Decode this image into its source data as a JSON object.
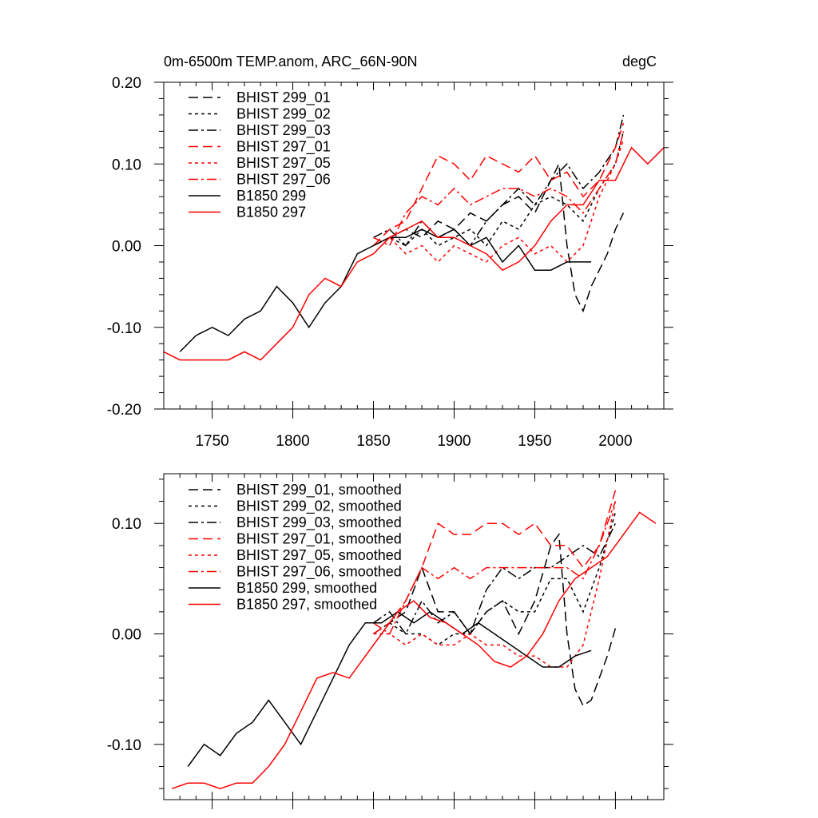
{
  "chart_data": [
    {
      "type": "line",
      "title": "0m-6500m TEMP.anom, ARC_66N-90N",
      "units": "degC",
      "xlabel": "",
      "ylabel": "",
      "xlim": [
        1720,
        2030
      ],
      "ylim": [
        -0.2,
        0.2
      ],
      "xticks": [
        1750,
        1800,
        1850,
        1900,
        1950,
        2000
      ],
      "xtick_labels": [
        "1750",
        "1800",
        "1850",
        "1900",
        "1950",
        "2000"
      ],
      "yticks": [
        -0.2,
        -0.1,
        0.0,
        0.1,
        0.2
      ],
      "ytick_labels": [
        "-0.20",
        "-0.10",
        "0.00",
        "0.10",
        "0.20"
      ],
      "legend_position": "top-left",
      "series": [
        {
          "name": "BHIST 299_01",
          "color": "#000000",
          "dash": "dashed",
          "x": [
            1850,
            1860,
            1870,
            1880,
            1890,
            1900,
            1910,
            1920,
            1930,
            1940,
            1950,
            1960,
            1965,
            1970,
            1975,
            1980,
            1985,
            1990,
            1995,
            2000,
            2005
          ],
          "y": [
            0.0,
            0.01,
            0.02,
            0.01,
            0.03,
            0.02,
            0.04,
            0.03,
            0.05,
            0.06,
            0.04,
            0.08,
            0.1,
            0.0,
            -0.06,
            -0.08,
            -0.05,
            -0.03,
            -0.01,
            0.02,
            0.04
          ]
        },
        {
          "name": "BHIST 299_02",
          "color": "#000000",
          "dash": "dotted",
          "x": [
            1850,
            1860,
            1870,
            1880,
            1890,
            1900,
            1910,
            1920,
            1930,
            1940,
            1950,
            1960,
            1970,
            1980,
            1990,
            2000,
            2005
          ],
          "y": [
            0.0,
            0.01,
            0.0,
            0.02,
            0.0,
            0.01,
            0.02,
            0.0,
            0.03,
            0.02,
            0.05,
            0.06,
            0.05,
            0.03,
            0.07,
            0.1,
            0.14
          ]
        },
        {
          "name": "BHIST 299_03",
          "color": "#000000",
          "dash": "dashdot",
          "x": [
            1850,
            1860,
            1870,
            1880,
            1890,
            1900,
            1910,
            1920,
            1930,
            1940,
            1950,
            1960,
            1970,
            1980,
            1990,
            2000,
            2005
          ],
          "y": [
            0.01,
            0.02,
            0.0,
            0.03,
            0.01,
            0.02,
            0.0,
            0.03,
            0.05,
            0.07,
            0.05,
            0.08,
            0.1,
            0.07,
            0.09,
            0.12,
            0.16
          ]
        },
        {
          "name": "BHIST 297_01",
          "color": "#ff0000",
          "dash": "dashed",
          "x": [
            1850,
            1860,
            1870,
            1880,
            1890,
            1900,
            1910,
            1920,
            1930,
            1940,
            1950,
            1960,
            1970,
            1980,
            1990,
            2000,
            2005
          ],
          "y": [
            0.0,
            0.02,
            0.03,
            0.07,
            0.11,
            0.1,
            0.08,
            0.11,
            0.1,
            0.09,
            0.11,
            0.08,
            0.09,
            0.06,
            0.08,
            0.12,
            0.15
          ]
        },
        {
          "name": "BHIST 297_05",
          "color": "#ff0000",
          "dash": "dotted",
          "x": [
            1850,
            1860,
            1870,
            1880,
            1890,
            1900,
            1910,
            1920,
            1930,
            1940,
            1950,
            1960,
            1970,
            1980,
            1990,
            2000,
            2005
          ],
          "y": [
            0.0,
            0.01,
            -0.01,
            0.0,
            -0.02,
            0.0,
            -0.01,
            -0.02,
            0.0,
            0.01,
            -0.01,
            0.0,
            -0.02,
            0.0,
            0.06,
            0.1,
            0.13
          ]
        },
        {
          "name": "BHIST 297_06",
          "color": "#ff0000",
          "dash": "dashdot",
          "x": [
            1850,
            1860,
            1870,
            1880,
            1890,
            1900,
            1910,
            1920,
            1930,
            1940,
            1950,
            1960,
            1970,
            1980,
            1990,
            2000,
            2005
          ],
          "y": [
            0.01,
            0.0,
            0.04,
            0.06,
            0.05,
            0.07,
            0.05,
            0.06,
            0.07,
            0.07,
            0.06,
            0.07,
            0.06,
            0.04,
            0.07,
            0.1,
            0.14
          ]
        },
        {
          "name": "B1850 299",
          "color": "#000000",
          "dash": "solid",
          "x": [
            1730,
            1740,
            1750,
            1760,
            1770,
            1780,
            1790,
            1800,
            1810,
            1820,
            1830,
            1840,
            1850,
            1860,
            1870,
            1880,
            1890,
            1900,
            1910,
            1920,
            1930,
            1940,
            1950,
            1960,
            1970,
            1980,
            1985
          ],
          "y": [
            -0.13,
            -0.11,
            -0.1,
            -0.11,
            -0.09,
            -0.08,
            -0.05,
            -0.07,
            -0.1,
            -0.07,
            -0.05,
            -0.01,
            0.0,
            0.01,
            0.01,
            0.02,
            0.01,
            0.02,
            0.0,
            0.01,
            -0.02,
            0.0,
            -0.03,
            -0.03,
            -0.02,
            -0.02,
            -0.02
          ]
        },
        {
          "name": "B1850 297",
          "color": "#ff0000",
          "dash": "solid",
          "x": [
            1720,
            1730,
            1740,
            1750,
            1760,
            1770,
            1780,
            1790,
            1800,
            1810,
            1820,
            1830,
            1840,
            1850,
            1860,
            1870,
            1880,
            1890,
            1900,
            1910,
            1920,
            1930,
            1940,
            1950,
            1960,
            1970,
            1980,
            1990,
            2000,
            2010,
            2020,
            2030
          ],
          "y": [
            -0.13,
            -0.14,
            -0.14,
            -0.14,
            -0.14,
            -0.13,
            -0.14,
            -0.12,
            -0.1,
            -0.06,
            -0.04,
            -0.05,
            -0.02,
            -0.01,
            0.01,
            0.02,
            0.03,
            0.01,
            0.01,
            0.0,
            -0.01,
            -0.03,
            -0.02,
            0.0,
            0.03,
            0.05,
            0.05,
            0.08,
            0.08,
            0.12,
            0.1,
            0.12
          ]
        }
      ]
    },
    {
      "type": "line",
      "title": "",
      "xlabel": "",
      "ylabel": "",
      "xlim": [
        1720,
        2030
      ],
      "ylim": [
        -0.15,
        0.145
      ],
      "xticks": [
        1750,
        1800,
        1850,
        1900,
        1950,
        2000
      ],
      "xtick_labels": [],
      "yticks": [
        -0.1,
        0.0,
        0.1
      ],
      "ytick_labels": [
        "-0.10",
        "0.00",
        "0.10"
      ],
      "legend_position": "top-left",
      "series": [
        {
          "name": "BHIST 299_01, smoothed",
          "color": "#000000",
          "dash": "dashed",
          "x": [
            1850,
            1860,
            1870,
            1880,
            1890,
            1900,
            1910,
            1920,
            1930,
            1940,
            1950,
            1960,
            1965,
            1970,
            1975,
            1980,
            1985,
            1990,
            1995,
            2000
          ],
          "y": [
            0.0,
            0.01,
            0.02,
            0.06,
            0.02,
            0.02,
            0.0,
            0.02,
            0.03,
            0.0,
            0.03,
            0.08,
            0.09,
            0.0,
            -0.05,
            -0.065,
            -0.06,
            -0.04,
            -0.02,
            0.005
          ]
        },
        {
          "name": "BHIST 299_02, smoothed",
          "color": "#000000",
          "dash": "dotted",
          "x": [
            1850,
            1860,
            1870,
            1880,
            1890,
            1900,
            1910,
            1920,
            1930,
            1940,
            1950,
            1960,
            1970,
            1980,
            1990,
            2000
          ],
          "y": [
            0.0,
            0.01,
            0.0,
            0.0,
            -0.01,
            0.0,
            0.0,
            0.02,
            0.03,
            0.02,
            0.02,
            0.05,
            0.05,
            0.02,
            0.06,
            0.11
          ]
        },
        {
          "name": "BHIST 299_03, smoothed",
          "color": "#000000",
          "dash": "dashdot",
          "x": [
            1850,
            1860,
            1870,
            1880,
            1890,
            1900,
            1910,
            1920,
            1930,
            1940,
            1950,
            1960,
            1970,
            1980,
            1990,
            2000
          ],
          "y": [
            0.01,
            0.02,
            0.0,
            0.03,
            0.01,
            0.02,
            0.0,
            0.04,
            0.06,
            0.05,
            0.06,
            0.06,
            0.07,
            0.08,
            0.07,
            0.1
          ]
        },
        {
          "name": "BHIST 297_01, smoothed",
          "color": "#ff0000",
          "dash": "dashed",
          "x": [
            1850,
            1860,
            1870,
            1880,
            1890,
            1900,
            1910,
            1920,
            1930,
            1940,
            1950,
            1960,
            1970,
            1980,
            1990,
            2000
          ],
          "y": [
            0.0,
            0.01,
            0.03,
            0.06,
            0.1,
            0.09,
            0.09,
            0.1,
            0.1,
            0.09,
            0.1,
            0.08,
            0.08,
            0.06,
            0.08,
            0.13
          ]
        },
        {
          "name": "BHIST 297_05, smoothed",
          "color": "#ff0000",
          "dash": "dotted",
          "x": [
            1850,
            1860,
            1870,
            1880,
            1890,
            1900,
            1910,
            1920,
            1930,
            1940,
            1950,
            1960,
            1970,
            1980,
            1990,
            2000
          ],
          "y": [
            0.0,
            0.0,
            -0.01,
            0.0,
            -0.01,
            -0.01,
            0.0,
            -0.01,
            -0.01,
            -0.02,
            -0.02,
            -0.03,
            -0.03,
            -0.01,
            0.05,
            0.12
          ]
        },
        {
          "name": "BHIST 297_06, smoothed",
          "color": "#ff0000",
          "dash": "dashdot",
          "x": [
            1850,
            1860,
            1870,
            1880,
            1890,
            1900,
            1910,
            1920,
            1930,
            1940,
            1950,
            1960,
            1970,
            1980,
            1990,
            2000
          ],
          "y": [
            0.01,
            0.0,
            0.03,
            0.06,
            0.05,
            0.06,
            0.05,
            0.06,
            0.06,
            0.06,
            0.06,
            0.06,
            0.06,
            0.05,
            0.08,
            0.12
          ]
        },
        {
          "name": "B1850 299, smoothed",
          "color": "#000000",
          "dash": "solid",
          "x": [
            1735,
            1745,
            1755,
            1765,
            1775,
            1785,
            1795,
            1805,
            1815,
            1825,
            1835,
            1845,
            1855,
            1865,
            1875,
            1885,
            1895,
            1905,
            1915,
            1925,
            1935,
            1945,
            1955,
            1965,
            1975,
            1985
          ],
          "y": [
            -0.12,
            -0.1,
            -0.11,
            -0.09,
            -0.08,
            -0.06,
            -0.08,
            -0.1,
            -0.07,
            -0.04,
            -0.01,
            0.01,
            0.01,
            0.02,
            0.01,
            0.02,
            0.01,
            0.0,
            0.01,
            0.0,
            -0.01,
            -0.02,
            -0.03,
            -0.03,
            -0.02,
            -0.015
          ]
        },
        {
          "name": "B1850 297, smoothed",
          "color": "#ff0000",
          "dash": "solid",
          "x": [
            1725,
            1735,
            1745,
            1755,
            1765,
            1775,
            1785,
            1795,
            1805,
            1815,
            1825,
            1835,
            1845,
            1855,
            1865,
            1875,
            1885,
            1895,
            1905,
            1915,
            1925,
            1935,
            1945,
            1955,
            1965,
            1975,
            1985,
            1995,
            2005,
            2015,
            2025
          ],
          "y": [
            -0.14,
            -0.135,
            -0.135,
            -0.14,
            -0.135,
            -0.135,
            -0.12,
            -0.1,
            -0.07,
            -0.04,
            -0.035,
            -0.04,
            -0.02,
            0.0,
            0.02,
            0.03,
            0.015,
            0.01,
            0.0,
            -0.01,
            -0.025,
            -0.03,
            -0.02,
            0.0,
            0.03,
            0.05,
            0.06,
            0.07,
            0.09,
            0.11,
            0.1
          ]
        }
      ]
    }
  ]
}
